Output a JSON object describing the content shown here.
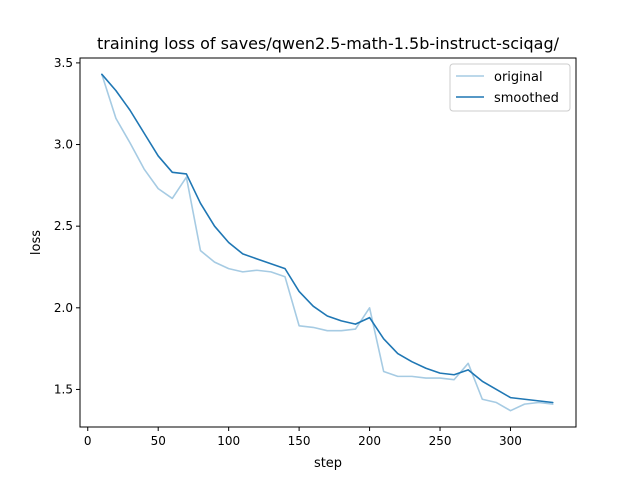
{
  "chart_data": {
    "type": "line",
    "title": "training loss of saves/qwen2.5-math-1.5b-instruct-sciqag/",
    "xlabel": "step",
    "ylabel": "loss",
    "xlim": [
      -5.5,
      346.5
    ],
    "ylim": [
      1.27,
      3.53
    ],
    "xticks": [
      0,
      50,
      100,
      150,
      200,
      250,
      300
    ],
    "xtick_labels": [
      "0",
      "50",
      "100",
      "150",
      "200",
      "250",
      "300"
    ],
    "yticks": [
      1.5,
      2.0,
      2.5,
      3.0,
      3.5
    ],
    "ytick_labels": [
      "1.5",
      "2.0",
      "2.5",
      "3.0",
      "3.5"
    ],
    "grid": false,
    "legend_position": "top-right",
    "x": [
      10,
      20,
      30,
      40,
      50,
      60,
      70,
      80,
      90,
      100,
      110,
      120,
      130,
      140,
      150,
      160,
      170,
      180,
      190,
      200,
      210,
      220,
      230,
      240,
      250,
      260,
      270,
      280,
      290,
      300,
      310,
      320,
      330
    ],
    "series": [
      {
        "name": "original",
        "color": "#a6cbe3",
        "values": [
          3.43,
          3.16,
          3.01,
          2.85,
          2.73,
          2.67,
          2.8,
          2.35,
          2.28,
          2.24,
          2.22,
          2.23,
          2.22,
          2.19,
          1.89,
          1.88,
          1.86,
          1.86,
          1.87,
          2.0,
          1.61,
          1.58,
          1.58,
          1.57,
          1.57,
          1.56,
          1.66,
          1.44,
          1.42,
          1.37,
          1.41,
          1.42,
          1.41
        ]
      },
      {
        "name": "smoothed",
        "color": "#1f77b4",
        "values": [
          3.43,
          3.33,
          3.21,
          3.07,
          2.93,
          2.83,
          2.82,
          2.64,
          2.5,
          2.4,
          2.33,
          2.3,
          2.27,
          2.24,
          2.1,
          2.01,
          1.95,
          1.92,
          1.9,
          1.94,
          1.81,
          1.72,
          1.67,
          1.63,
          1.6,
          1.59,
          1.62,
          1.55,
          1.5,
          1.45,
          1.44,
          1.43,
          1.42
        ]
      }
    ]
  }
}
